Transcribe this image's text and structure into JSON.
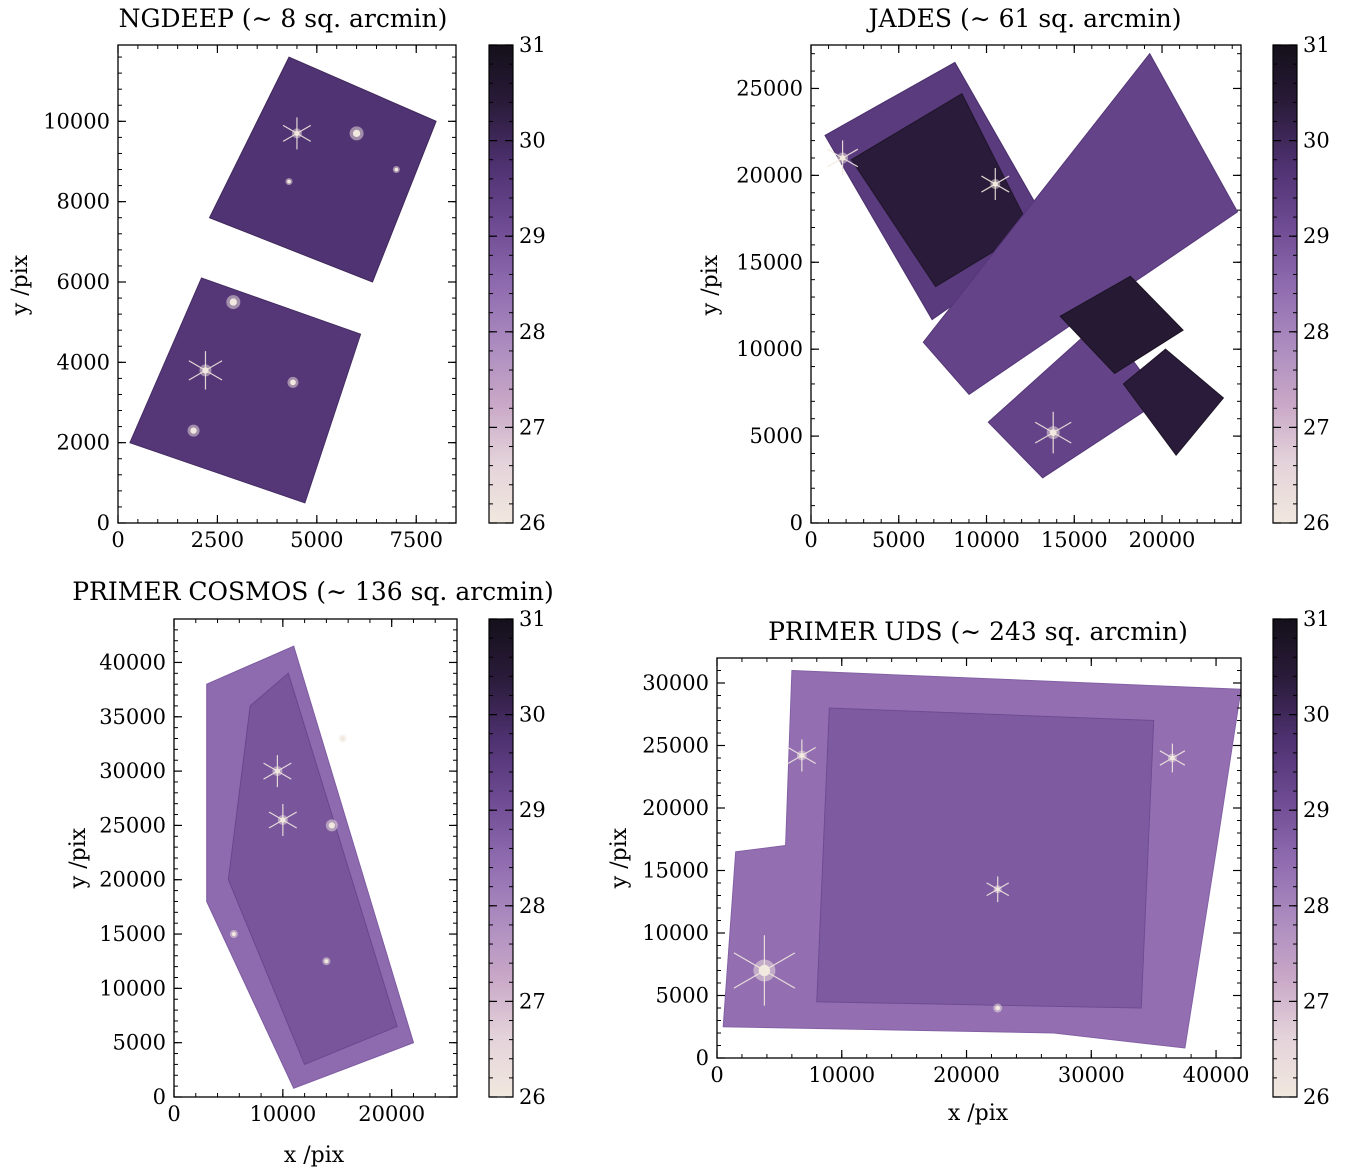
{
  "colors": {
    "colormap": [
      "#f1e8df",
      "#e4d3da",
      "#c8a7c7",
      "#ab8bbf",
      "#8e6aae",
      "#6d4a92",
      "#4e3170",
      "#2a1b3a",
      "#14101a"
    ],
    "star": "#f1e8df",
    "background": "#ffffff"
  },
  "chart_data": [
    {
      "type": "heatmap",
      "title": "NGDEEP (∼ 8 sq. arcmin)",
      "xlabel": "",
      "ylabel": "y /pix",
      "xlim": [
        0,
        8500
      ],
      "ylim": [
        0,
        11900
      ],
      "xticks": [
        0,
        2500,
        5000,
        7500
      ],
      "yticks": [
        0,
        2000,
        4000,
        6000,
        8000,
        10000
      ],
      "colorbar": {
        "range": [
          26,
          31
        ],
        "ticks": [
          26,
          27,
          28,
          29,
          30,
          31
        ]
      },
      "footprints": [
        {
          "value": 29.7,
          "corners": [
            [
              6400,
              6000
            ],
            [
              8000,
              10000
            ],
            [
              4300,
              11600
            ],
            [
              2300,
              7600
            ]
          ]
        },
        {
          "value": 29.6,
          "corners": [
            [
              4700,
              500
            ],
            [
              6100,
              4700
            ],
            [
              2100,
              6100
            ],
            [
              300,
              2000
            ]
          ]
        }
      ],
      "bright_sources": [
        [
          6000,
          9700,
          1.4,
          0
        ],
        [
          4500,
          9700,
          1.0,
          1
        ],
        [
          7000,
          8800,
          0.7,
          0
        ],
        [
          4300,
          8500,
          0.7,
          0
        ],
        [
          2900,
          5500,
          1.4,
          0
        ],
        [
          2200,
          3800,
          1.2,
          1
        ],
        [
          4400,
          3500,
          1.1,
          0
        ],
        [
          1900,
          2300,
          1.2,
          0
        ]
      ]
    },
    {
      "type": "heatmap",
      "title": "JADES (∼ 61 sq. arcmin)",
      "xlabel": "",
      "ylabel": "y /pix",
      "xlim": [
        0,
        24500
      ],
      "ylim": [
        0,
        27500
      ],
      "xticks": [
        0,
        5000,
        10000,
        15000,
        20000
      ],
      "yticks": [
        0,
        5000,
        10000,
        15000,
        20000,
        25000
      ],
      "colorbar": {
        "range": [
          26,
          31
        ],
        "ticks": [
          26,
          27,
          28,
          29,
          30,
          31
        ]
      },
      "footprints": [
        {
          "value": 29.5,
          "corners": [
            [
              6900,
              11700
            ],
            [
              13800,
              16600
            ],
            [
              8200,
              26500
            ],
            [
              800,
              22300
            ]
          ]
        },
        {
          "value": 30.4,
          "corners": [
            [
              7100,
              13600
            ],
            [
              12500,
              16900
            ],
            [
              8600,
              24700
            ],
            [
              2300,
              20900
            ]
          ]
        },
        {
          "value": 29.3,
          "corners": [
            [
              9000,
              7400
            ],
            [
              24300,
              17900
            ],
            [
              19300,
              27000
            ],
            [
              6400,
              10400
            ]
          ]
        },
        {
          "value": 29.3,
          "corners": [
            [
              13200,
              2600
            ],
            [
              20000,
              7100
            ],
            [
              16600,
              11700
            ],
            [
              10100,
              5800
            ]
          ]
        },
        {
          "value": 30.5,
          "corners": [
            [
              17300,
              8600
            ],
            [
              21200,
              11100
            ],
            [
              18200,
              14200
            ],
            [
              14200,
              11900
            ]
          ]
        },
        {
          "value": 30.4,
          "corners": [
            [
              20800,
              3900
            ],
            [
              23500,
              7200
            ],
            [
              20200,
              10000
            ],
            [
              17800,
              8000
            ]
          ]
        }
      ],
      "bright_sources": [
        [
          1800,
          21000,
          1.1,
          1
        ],
        [
          10500,
          19500,
          1.0,
          1
        ],
        [
          13800,
          5200,
          1.3,
          1
        ]
      ]
    },
    {
      "type": "heatmap",
      "title": "PRIMER COSMOS (∼ 136 sq. arcmin)",
      "xlabel": "x /pix",
      "ylabel": "y /pix",
      "xlim": [
        0,
        26000
      ],
      "ylim": [
        0,
        44000
      ],
      "xticks": [
        0,
        10000,
        20000
      ],
      "yticks": [
        0,
        5000,
        10000,
        15000,
        20000,
        25000,
        30000,
        35000,
        40000
      ],
      "colorbar": {
        "range": [
          26,
          31
        ],
        "ticks": [
          26,
          27,
          28,
          29,
          30,
          31
        ]
      },
      "footprints": [
        {
          "value": 28.5,
          "corners": [
            [
              3000,
              38000
            ],
            [
              11000,
              41500
            ],
            [
              22000,
              5000
            ],
            [
              11000,
              800
            ],
            [
              3000,
              18000
            ]
          ]
        },
        {
          "value": 28.9,
          "corners": [
            [
              7000,
              36000
            ],
            [
              10500,
              39000
            ],
            [
              20500,
              6500
            ],
            [
              12000,
              3000
            ],
            [
              5000,
              20000
            ]
          ]
        }
      ],
      "bright_sources": [
        [
          9500,
          30000,
          1.0,
          1
        ],
        [
          10000,
          25500,
          1.0,
          1
        ],
        [
          14500,
          25000,
          1.2,
          0
        ],
        [
          15500,
          33000,
          0.8,
          0
        ],
        [
          5500,
          15000,
          0.8,
          0
        ],
        [
          14000,
          12500,
          0.8,
          0
        ]
      ]
    },
    {
      "type": "heatmap",
      "title": "PRIMER UDS (∼ 243 sq. arcmin)",
      "xlabel": "x /pix",
      "ylabel": "y /pix",
      "xlim": [
        0,
        42000
      ],
      "ylim": [
        0,
        32000
      ],
      "xticks": [
        0,
        10000,
        20000,
        30000,
        40000
      ],
      "yticks": [
        0,
        5000,
        10000,
        15000,
        20000,
        25000,
        30000
      ],
      "colorbar": {
        "range": [
          26,
          31
        ],
        "ticks": [
          26,
          27,
          28,
          29,
          30,
          31
        ]
      },
      "footprints": [
        {
          "value": 28.4,
          "corners": [
            [
              6000,
              31000
            ],
            [
              42000,
              29500
            ],
            [
              40000,
              16500
            ],
            [
              37500,
              800
            ],
            [
              27000,
              2000
            ],
            [
              500,
              2500
            ],
            [
              1500,
              16500
            ],
            [
              5500,
              17000
            ]
          ]
        },
        {
          "value": 28.8,
          "corners": [
            [
              9000,
              28000
            ],
            [
              35000,
              27000
            ],
            [
              34000,
              4000
            ],
            [
              8000,
              4500
            ]
          ]
        }
      ],
      "bright_sources": [
        [
          3800,
          7000,
          2.2,
          1
        ],
        [
          6800,
          24200,
          1.0,
          1
        ],
        [
          36500,
          24000,
          0.9,
          1
        ],
        [
          22500,
          13500,
          0.8,
          1
        ],
        [
          22500,
          4000,
          0.9,
          0
        ]
      ]
    }
  ]
}
